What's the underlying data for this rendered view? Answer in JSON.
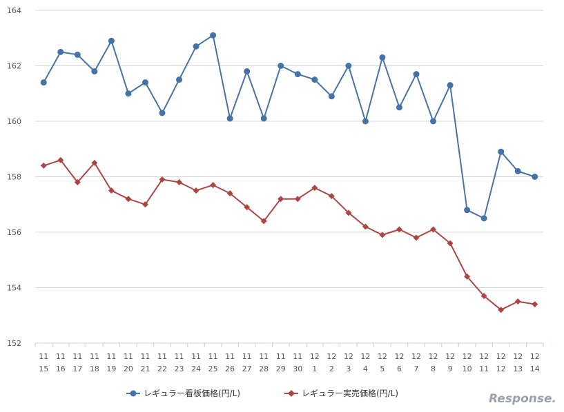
{
  "chart_data": {
    "type": "line",
    "title": "",
    "xlabel": "",
    "ylabel": "",
    "ylim": [
      152,
      164
    ],
    "y_ticks": [
      152,
      154,
      156,
      158,
      160,
      162,
      164
    ],
    "grid": true,
    "legend_position": "bottom",
    "categories": [
      {
        "month": "11",
        "day": "15"
      },
      {
        "month": "11",
        "day": "16"
      },
      {
        "month": "11",
        "day": "17"
      },
      {
        "month": "11",
        "day": "18"
      },
      {
        "month": "11",
        "day": "19"
      },
      {
        "month": "11",
        "day": "20"
      },
      {
        "month": "11",
        "day": "21"
      },
      {
        "month": "11",
        "day": "22"
      },
      {
        "month": "11",
        "day": "23"
      },
      {
        "month": "11",
        "day": "24"
      },
      {
        "month": "11",
        "day": "25"
      },
      {
        "month": "11",
        "day": "26"
      },
      {
        "month": "11",
        "day": "27"
      },
      {
        "month": "11",
        "day": "28"
      },
      {
        "month": "11",
        "day": "29"
      },
      {
        "month": "11",
        "day": "30"
      },
      {
        "month": "12",
        "day": "1"
      },
      {
        "month": "12",
        "day": "2"
      },
      {
        "month": "12",
        "day": "3"
      },
      {
        "month": "12",
        "day": "4"
      },
      {
        "month": "12",
        "day": "5"
      },
      {
        "month": "12",
        "day": "6"
      },
      {
        "month": "12",
        "day": "7"
      },
      {
        "month": "12",
        "day": "8"
      },
      {
        "month": "12",
        "day": "9"
      },
      {
        "month": "12",
        "day": "10"
      },
      {
        "month": "12",
        "day": "11"
      },
      {
        "month": "12",
        "day": "12"
      },
      {
        "month": "12",
        "day": "13"
      },
      {
        "month": "12",
        "day": "14"
      }
    ],
    "series": [
      {
        "name": "レギュラー看板価格(円/L)",
        "color": "#4572a7",
        "marker": "circle",
        "values": [
          161.4,
          162.5,
          162.4,
          161.8,
          162.9,
          161.0,
          161.4,
          160.3,
          161.5,
          162.7,
          163.1,
          160.1,
          161.8,
          160.1,
          162.0,
          161.7,
          161.5,
          160.9,
          162.0,
          160.0,
          162.3,
          160.5,
          161.7,
          160.0,
          161.3,
          156.8,
          156.5,
          158.9,
          158.2,
          158.0
        ]
      },
      {
        "name": "レギュラー実売価格(円/L)",
        "color": "#aa4643",
        "marker": "diamond",
        "values": [
          158.4,
          158.6,
          157.8,
          158.5,
          157.5,
          157.2,
          157.0,
          157.9,
          157.8,
          157.5,
          157.7,
          157.4,
          156.9,
          156.4,
          157.2,
          157.2,
          157.6,
          157.3,
          156.7,
          156.2,
          155.9,
          156.1,
          155.8,
          156.1,
          155.6,
          154.4,
          153.7,
          153.2,
          153.5,
          153.4
        ]
      }
    ]
  },
  "watermark": "Response."
}
